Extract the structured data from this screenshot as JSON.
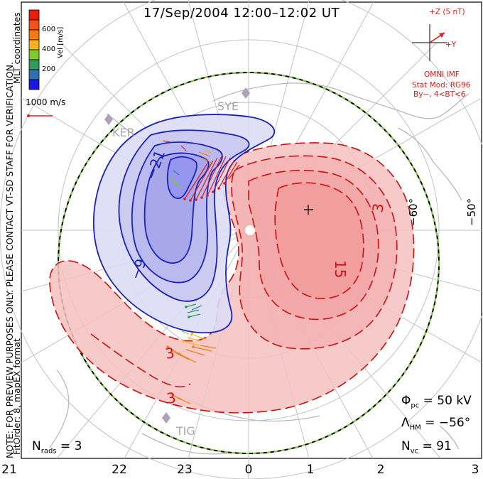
{
  "title": "17/Sep/2004 12:00–12:02 UT",
  "colorbar": {
    "label": "Vel [m/s]",
    "ticks": [
      "600",
      "400",
      "200"
    ],
    "colors": [
      "#e81d0c",
      "#f57a12",
      "#f7b21c",
      "#7ecb2c",
      "#2f9c57",
      "#2e6fb1",
      "#2439c8",
      "#1a17e6"
    ]
  },
  "reference_vector": {
    "label": "1000 m/s",
    "color": "#e0191b"
  },
  "imf": {
    "z_label": "+Z (5 nT)",
    "y_label": "+Y",
    "source": "OMNI IMF",
    "model": "Stat Mod: RG96",
    "condition": "By−, 4<BT<6",
    "color": "#e0191b"
  },
  "stations": [
    "SYE",
    "KER",
    "TIG"
  ],
  "latitude_labels": [
    "−60°",
    "−50°"
  ],
  "contour_labels": {
    "negative": [
      "−21",
      "−9"
    ],
    "positive": [
      "3",
      "15",
      "3",
      "3"
    ]
  },
  "mlt_labels": [
    "21",
    "22",
    "23",
    "0",
    "1",
    "2",
    "3"
  ],
  "stats": {
    "phi_pc": "= 50 kV",
    "lambda_hm": "= −56°",
    "n_vc": "= 91",
    "n_rads": "= 3"
  },
  "side_text": {
    "note": "NOTE: FOR PREVIEW PURPOSES ONLY. PLEASE CONTACT VT-SD STAFF FOR VERIFICATION.",
    "fit_order": "FitOrder: 8, mapEX format",
    "coords": "MLT coordinates"
  },
  "colors": {
    "negative_fill": "#8e8ef0",
    "negative_line": "#1a22b8",
    "positive_fill": "#f4a0a0",
    "positive_line": "#cc1010",
    "hm_boundary_green": "#7bd23b"
  }
}
